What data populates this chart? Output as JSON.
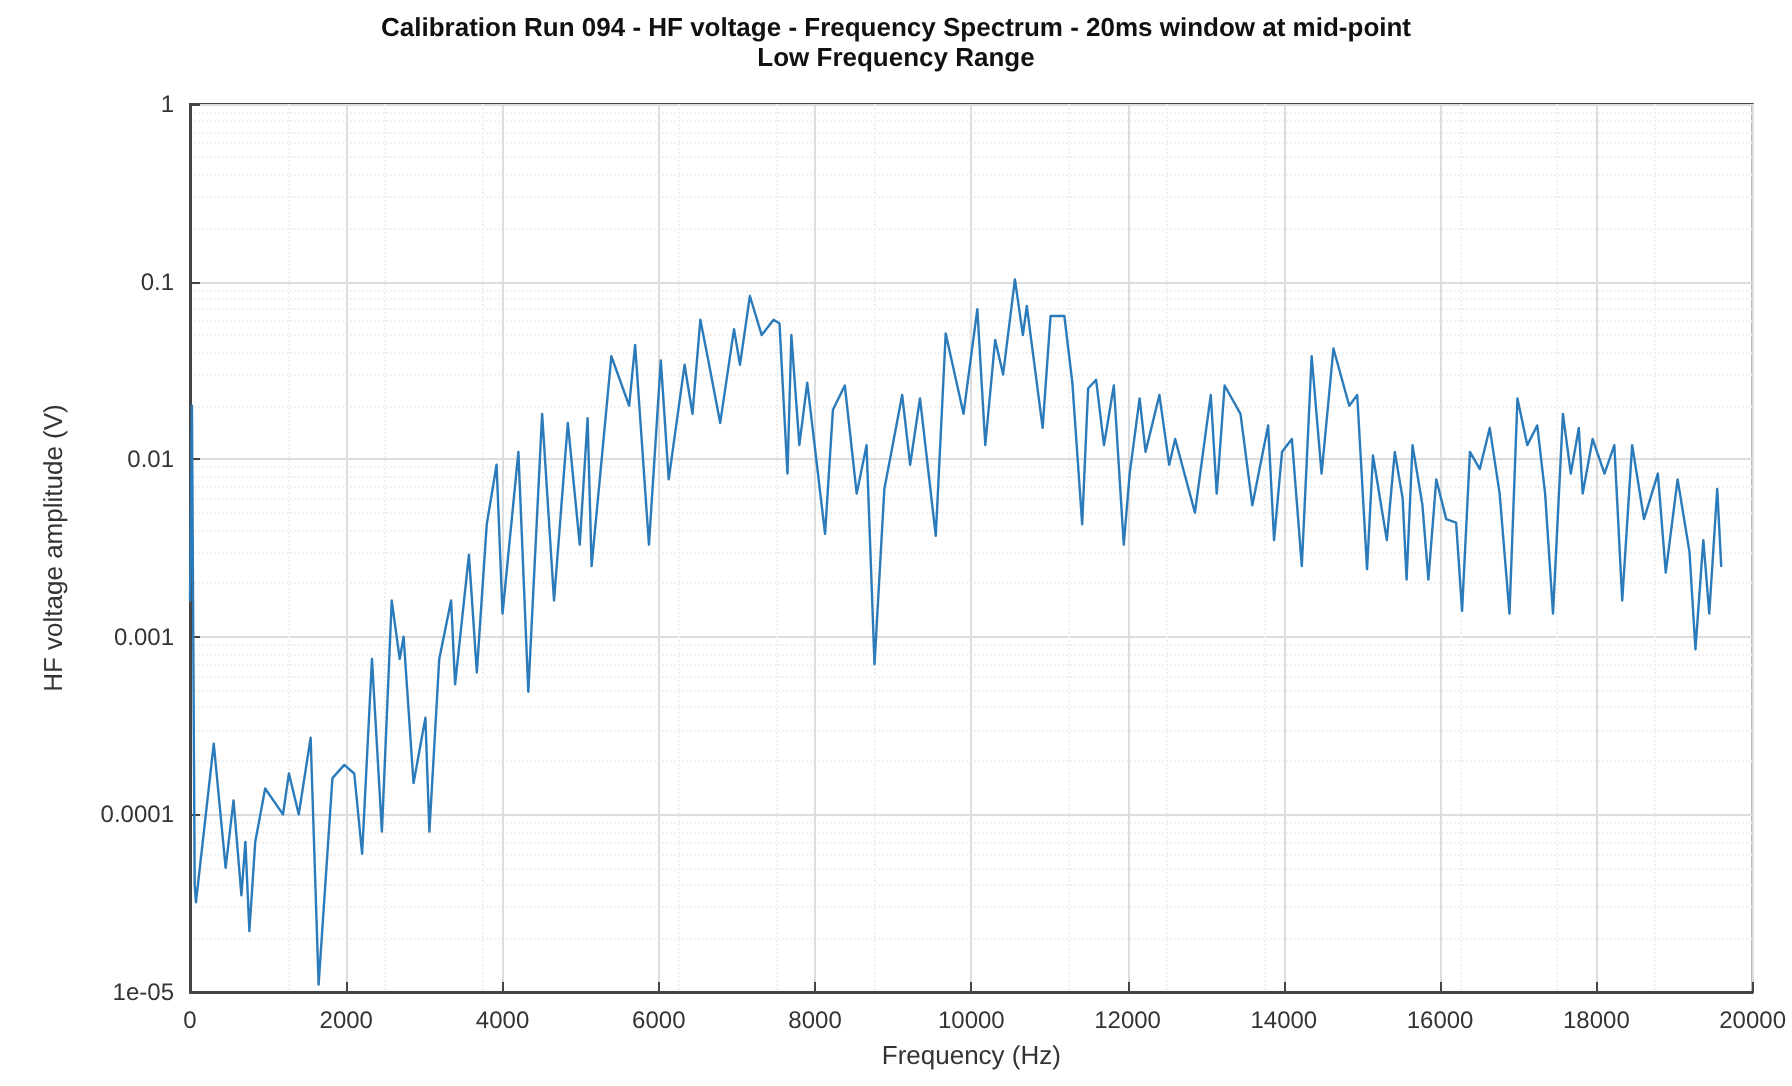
{
  "chart_data": {
    "type": "line",
    "title": "Calibration Run 094 - HF voltage - Frequency Spectrum - 20ms window at mid-point",
    "subtitle": "Low Frequency Range",
    "xlabel": "Frequency (Hz)",
    "ylabel": "HF voltage amplitude (V)",
    "x": [
      0,
      25,
      60,
      76,
      304,
      456,
      557,
      658,
      709,
      760,
      835,
      962,
      1190,
      1266,
      1392,
      1544,
      1646,
      1823,
      1975,
      2102,
      2203,
      2329,
      2456,
      2582,
      2684,
      2734,
      2861,
      3013,
      3064,
      3190,
      3342,
      3393,
      3570,
      3671,
      3798,
      3924,
      4000,
      4203,
      4330,
      4507,
      4659,
      4836,
      4988,
      5089,
      5140,
      5393,
      5621,
      5697,
      5874,
      6026,
      6127,
      6330,
      6431,
      6532,
      6634,
      6786,
      6963,
      7039,
      7166,
      7317,
      7469,
      7545,
      7647,
      7697,
      7799,
      7900,
      8128,
      8229,
      8381,
      8533,
      8659,
      8761,
      8887,
      9115,
      9217,
      9343,
      9545,
      9672,
      9900,
      10077,
      10179,
      10305,
      10407,
      10558,
      10660,
      10710,
      10913,
      11014,
      11191,
      11293,
      11419,
      11495,
      11597,
      11698,
      11824,
      11951,
      12027,
      12154,
      12230,
      12407,
      12533,
      12609,
      12862,
      13065,
      13141,
      13242,
      13445,
      13597,
      13799,
      13875,
      13977,
      14103,
      14230,
      14356,
      14483,
      14635,
      14837,
      14939,
      15065,
      15141,
      15318,
      15420,
      15521,
      15571,
      15647,
      15774,
      15850,
      15951,
      16078,
      16205,
      16281,
      16382,
      16508,
      16635,
      16762,
      16888,
      16990,
      17116,
      17243,
      17344,
      17445,
      17572,
      17673,
      17775,
      17825,
      17952,
      18104,
      18230,
      18331,
      18458,
      18610,
      18787,
      18888,
      19040,
      19192,
      19268,
      19369,
      19445,
      19547,
      19598
    ],
    "series": [
      {
        "color": "#2b7bba",
        "values": [
          0.0016,
          0.02,
          4e-05,
          3.2e-05,
          0.00025,
          5e-05,
          0.00012,
          3.5e-05,
          7e-05,
          2.2e-05,
          7e-05,
          0.00014,
          0.0001,
          0.00017,
          0.0001,
          0.00027,
          1.1e-05,
          0.00016,
          0.00019,
          0.00017,
          6e-05,
          0.00075,
          8e-05,
          0.0016,
          0.00075,
          0.001,
          0.00015,
          0.00035,
          8e-05,
          0.00075,
          0.0016,
          0.00054,
          0.0029,
          0.00063,
          0.0043,
          0.0093,
          0.00135,
          0.011,
          0.00049,
          0.018,
          0.0016,
          0.016,
          0.0033,
          0.017,
          0.0025,
          0.038,
          0.02,
          0.044,
          0.0033,
          0.036,
          0.0077,
          0.034,
          0.018,
          0.061,
          0.036,
          0.016,
          0.054,
          0.034,
          0.083,
          0.05,
          0.061,
          0.058,
          0.0083,
          0.05,
          0.012,
          0.027,
          0.0038,
          0.019,
          0.026,
          0.0064,
          0.012,
          0.0007,
          0.0068,
          0.023,
          0.0093,
          0.022,
          0.0037,
          0.051,
          0.018,
          0.07,
          0.012,
          0.047,
          0.03,
          0.103,
          0.05,
          0.073,
          0.015,
          0.064,
          0.064,
          0.027,
          0.0043,
          0.025,
          0.028,
          0.012,
          0.026,
          0.0033,
          0.0083,
          0.022,
          0.011,
          0.023,
          0.0093,
          0.013,
          0.005,
          0.023,
          0.0064,
          0.026,
          0.018,
          0.0055,
          0.0155,
          0.0035,
          0.011,
          0.013,
          0.0025,
          0.038,
          0.0083,
          0.042,
          0.02,
          0.023,
          0.0024,
          0.0105,
          0.0035,
          0.011,
          0.006,
          0.0021,
          0.012,
          0.0055,
          0.0021,
          0.0077,
          0.0046,
          0.0044,
          0.0014,
          0.011,
          0.0088,
          0.015,
          0.0064,
          0.00135,
          0.022,
          0.012,
          0.0155,
          0.0064,
          0.00135,
          0.018,
          0.0083,
          0.015,
          0.0064,
          0.013,
          0.0083,
          0.012,
          0.0016,
          0.012,
          0.0046,
          0.0083,
          0.0023,
          0.0077,
          0.003,
          0.00085,
          0.0035,
          0.00135,
          0.0068,
          0.0025
        ]
      }
    ],
    "xlim": [
      0,
      20000
    ],
    "xticks": [
      0,
      2000,
      4000,
      6000,
      8000,
      10000,
      12000,
      14000,
      16000,
      18000,
      20000
    ],
    "ylim": [
      1e-05,
      1
    ],
    "yticks": [
      {
        "value": 1e-05,
        "label": "1e-05"
      },
      0.0001,
      0.001,
      0.01,
      0.1,
      1
    ],
    "log": "y",
    "grid": true,
    "marker": "none",
    "line_style": "solid"
  }
}
